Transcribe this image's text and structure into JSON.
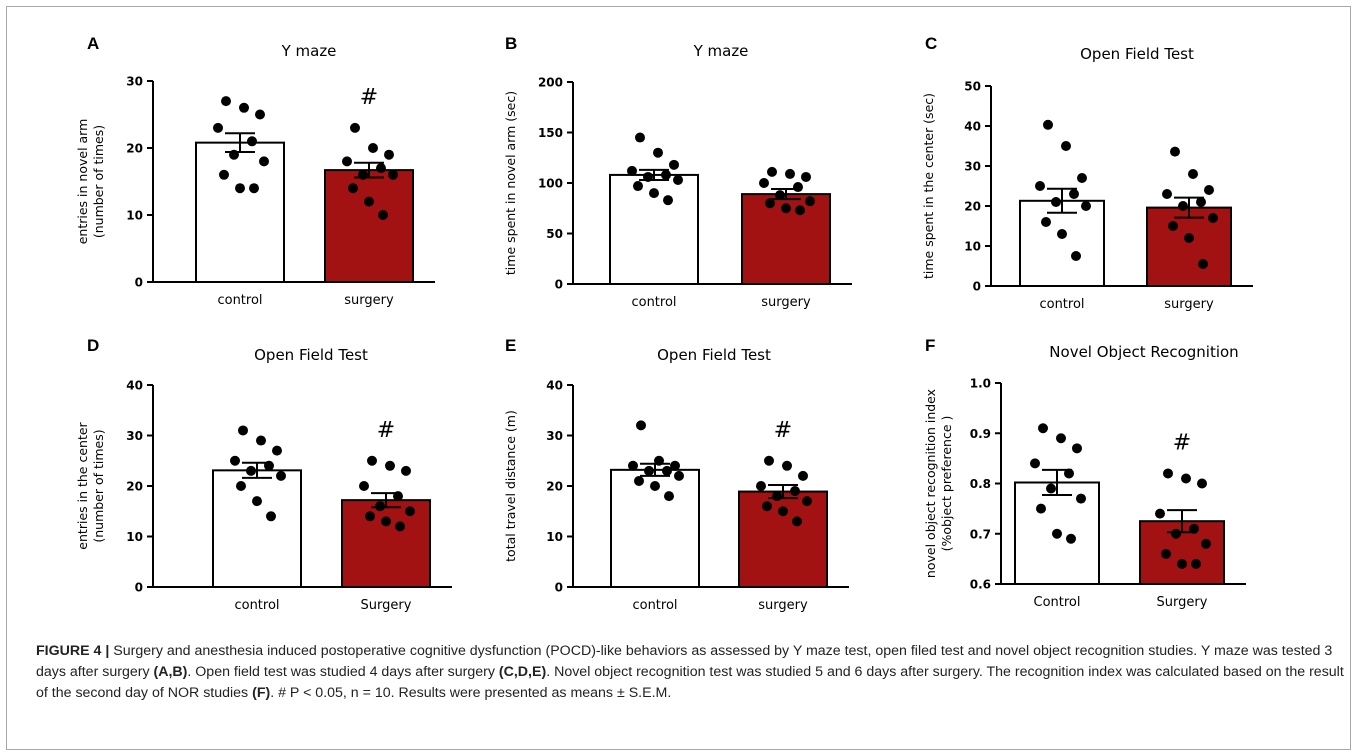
{
  "chart_data": [
    {
      "panel": "A",
      "type": "bar",
      "title": "Y maze",
      "ylabel": [
        "entries in novel arm",
        "(number of times)"
      ],
      "ylim": [
        0,
        30
      ],
      "yticks": [
        0,
        10,
        20,
        30
      ],
      "categories": [
        "control",
        "surgery"
      ],
      "values": [
        20.8,
        16.7
      ],
      "sem": [
        1.4,
        1.1
      ],
      "points": [
        [
          27,
          26,
          25,
          23,
          21,
          19,
          18,
          16,
          14,
          14
        ],
        [
          23,
          20,
          19,
          18,
          17,
          16,
          16,
          14,
          12,
          10
        ]
      ],
      "significance": [
        "",
        "#"
      ]
    },
    {
      "panel": "B",
      "type": "bar",
      "title": "Y maze",
      "ylabel": [
        "time spent in novel arm (sec)"
      ],
      "ylim": [
        0,
        200
      ],
      "yticks": [
        0,
        50,
        100,
        150,
        200
      ],
      "categories": [
        "control",
        "surgery"
      ],
      "values": [
        108,
        89
      ],
      "sem": [
        5,
        5
      ],
      "points": [
        [
          145,
          130,
          118,
          112,
          108,
          106,
          103,
          97,
          90,
          83
        ],
        [
          111,
          109,
          106,
          100,
          96,
          88,
          82,
          80,
          75,
          73
        ]
      ],
      "significance": [
        "",
        ""
      ]
    },
    {
      "panel": "C",
      "type": "bar",
      "title": "Open Field Test",
      "ylabel": [
        "time spent in the center (sec)"
      ],
      "ylim": [
        0,
        50
      ],
      "yticks": [
        0,
        10,
        20,
        30,
        40,
        50
      ],
      "categories": [
        "control",
        "surgery"
      ],
      "values": [
        21.3,
        19.6
      ],
      "sem": [
        3,
        2.5
      ],
      "points": [
        [
          40.3,
          35,
          27,
          25,
          23,
          21,
          20,
          16,
          13,
          7.5
        ],
        [
          33.6,
          28,
          24,
          23,
          21,
          20,
          17,
          15,
          12,
          5.5
        ]
      ],
      "significance": [
        "",
        ""
      ]
    },
    {
      "panel": "D",
      "type": "bar",
      "title": "Open Field Test",
      "ylabel": [
        "entries in the center",
        "(number of times)"
      ],
      "ylim": [
        0,
        40
      ],
      "yticks": [
        0,
        10,
        20,
        30,
        40
      ],
      "categories": [
        "control",
        "Surgery"
      ],
      "values": [
        23.1,
        17.2
      ],
      "sem": [
        1.5,
        1.4
      ],
      "points": [
        [
          31,
          29,
          27,
          25,
          24,
          23,
          22,
          20,
          17,
          14
        ],
        [
          25,
          24,
          23,
          20,
          18,
          16,
          15,
          14,
          13,
          12
        ]
      ],
      "significance": [
        "",
        "#"
      ]
    },
    {
      "panel": "E",
      "type": "bar",
      "title": "Open Field Test",
      "ylabel": [
        "total travel distance (m)"
      ],
      "ylim": [
        0,
        40
      ],
      "yticks": [
        0,
        10,
        20,
        30,
        40
      ],
      "categories": [
        "control",
        "surgery"
      ],
      "values": [
        23.2,
        18.9
      ],
      "sem": [
        1.2,
        1.3
      ],
      "points": [
        [
          32,
          25,
          24,
          24,
          23,
          23,
          22,
          21,
          20,
          18
        ],
        [
          25,
          24,
          22,
          20,
          19,
          18,
          17,
          16,
          15,
          13
        ]
      ],
      "significance": [
        "",
        "#"
      ]
    },
    {
      "panel": "F",
      "type": "bar",
      "title": "Novel Object Recognition",
      "ylabel": [
        "novel object recognition index",
        "(%object preference )"
      ],
      "ylim": [
        0.6,
        1.0
      ],
      "yticks": [
        0.6,
        0.7,
        0.8,
        0.9,
        1.0
      ],
      "categories": [
        "Control",
        "Surgery"
      ],
      "values": [
        0.802,
        0.725
      ],
      "sem": [
        0.025,
        0.022
      ],
      "points": [
        [
          0.91,
          0.89,
          0.87,
          0.84,
          0.82,
          0.79,
          0.77,
          0.75,
          0.7,
          0.69
        ],
        [
          0.82,
          0.81,
          0.8,
          0.74,
          0.71,
          0.7,
          0.68,
          0.66,
          0.64,
          0.64
        ]
      ],
      "significance": [
        "",
        "#"
      ]
    }
  ],
  "colors": {
    "control": "#ffffff",
    "surgery": "#a31212",
    "ink": "#000000"
  },
  "caption": {
    "label": "FIGURE 4 |",
    "text_1": " Surgery and anesthesia induced postoperative cognitive dysfunction (POCD)-like behaviors as assessed by Y maze test, open filed test and novel object recognition studies. Y maze was tested 3 days after surgery ",
    "ref_1": "(A,B)",
    "text_2": ". Open field test was studied 4 days after surgery ",
    "ref_2": "(C,D,E)",
    "text_3": ". Novel object recognition test was studied 5 and 6 days after surgery. The recognition index was calculated based on the result of the second day of NOR studies ",
    "ref_3": "(F)",
    "text_4": ". # P < 0.05, n = 10. Results were presented as means ± S.E.M."
  }
}
